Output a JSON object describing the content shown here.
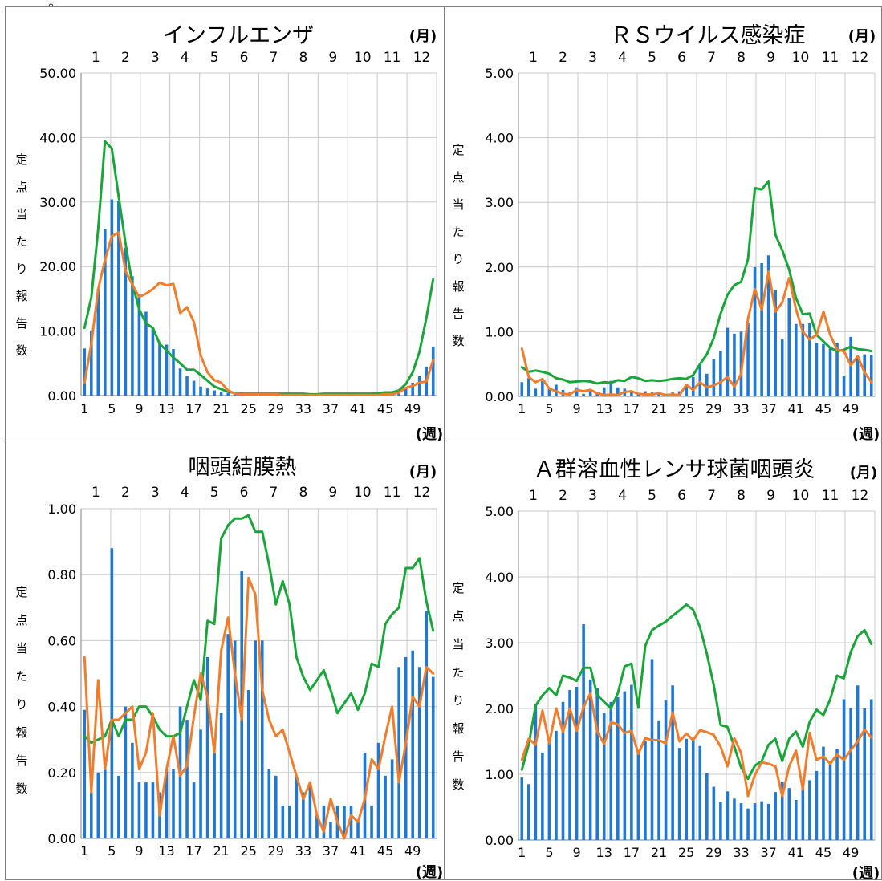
{
  "colors": {
    "bar": "#1f78d1",
    "green": "#1aa53a",
    "orange": "#f07d2c",
    "grid": "#c8c8c8",
    "axis": "#808080"
  },
  "chart_data": [
    {
      "type": "bar",
      "title": "インフルエンザ",
      "month_unit": "(月)",
      "week_unit": "(週)",
      "ylabel": "定点当たり報告数",
      "ylim": [
        0,
        50
      ],
      "yticks": [
        0,
        10,
        20,
        30,
        40,
        50
      ],
      "ytick_labels": [
        "0.00",
        "10.00",
        "20.00",
        "30.00",
        "40.00",
        "50.00"
      ],
      "months": [
        "1",
        "2",
        "3",
        "4",
        "5",
        "6",
        "7",
        "8",
        "9",
        "10",
        "11",
        "12"
      ],
      "xtick_labels": [
        "1",
        "5",
        "9",
        "13",
        "17",
        "21",
        "25",
        "29",
        "33",
        "37",
        "41",
        "45",
        "49"
      ],
      "series": [
        {
          "type": "bar",
          "values": [
            7.3,
            10.1,
            16.5,
            25.8,
            30.4,
            30.2,
            22.9,
            18.5,
            15.8,
            13.0,
            10.5,
            8.3,
            7.9,
            7.2,
            4.2,
            3.0,
            2.3,
            1.4,
            1.1,
            0.8,
            0.6,
            0.4,
            0.3,
            0.5,
            0.3,
            0.2,
            0.2,
            0.2,
            0.2,
            0.1,
            0.1,
            0.1,
            0.1,
            0.1,
            0.1,
            0.1,
            0.1,
            0.1,
            0.1,
            0.1,
            0.1,
            0.1,
            0.1,
            0.1,
            0.2,
            0.2,
            0.8,
            1.2,
            2.0,
            3.0,
            4.5,
            7.6
          ]
        },
        {
          "type": "line",
          "color": "green",
          "values": [
            10.5,
            15.2,
            25.8,
            39.4,
            38.3,
            30.8,
            23.6,
            17.3,
            13.4,
            11.2,
            10.5,
            8.0,
            7.0,
            5.9,
            5.0,
            4.0,
            4.0,
            3.2,
            2.3,
            1.4,
            1.0,
            0.6,
            0.4,
            0.3,
            0.3,
            0.3,
            0.3,
            0.3,
            0.3,
            0.3,
            0.3,
            0.3,
            0.3,
            0.2,
            0.2,
            0.3,
            0.3,
            0.3,
            0.3,
            0.3,
            0.3,
            0.3,
            0.3,
            0.4,
            0.5,
            0.5,
            0.8,
            1.8,
            3.6,
            6.8,
            12.0,
            18.0
          ]
        },
        {
          "type": "line",
          "color": "orange",
          "values": [
            2.0,
            8.0,
            16.5,
            21.0,
            24.7,
            25.3,
            19.3,
            17.2,
            15.3,
            15.8,
            16.5,
            17.5,
            17.1,
            17.3,
            12.8,
            13.7,
            11.4,
            6.2,
            3.6,
            2.4,
            2.0,
            0.8,
            0.3,
            0.2,
            0.2,
            0.2,
            0.2,
            0.2,
            0.2,
            0.1,
            0.1,
            0.1,
            0.1,
            0.1,
            0.1,
            0.1,
            0.1,
            0.1,
            0.1,
            0.1,
            0.1,
            0.1,
            0.1,
            0.1,
            0.2,
            0.2,
            0.5,
            1.2,
            1.5,
            2.0,
            2.2,
            5.5
          ]
        }
      ]
    },
    {
      "type": "bar",
      "title": "ＲＳウイルス感染症",
      "month_unit": "(月)",
      "week_unit": "(週)",
      "ylabel": "定点当たり報告数",
      "ylim": [
        0,
        5
      ],
      "yticks": [
        0,
        1,
        2,
        3,
        4,
        5
      ],
      "ytick_labels": [
        "0.00",
        "1.00",
        "2.00",
        "3.00",
        "4.00",
        "5.00"
      ],
      "months": [
        "1",
        "2",
        "3",
        "4",
        "5",
        "6",
        "7",
        "8",
        "9",
        "10",
        "11",
        "12"
      ],
      "xtick_labels": [
        "1",
        "5",
        "9",
        "13",
        "17",
        "21",
        "25",
        "29",
        "33",
        "37",
        "41",
        "45",
        "49"
      ],
      "series": [
        {
          "type": "bar",
          "values": [
            0.22,
            0.28,
            0.12,
            0.24,
            0.12,
            0.18,
            0.1,
            0.06,
            0.14,
            0.04,
            0.08,
            0.06,
            0.14,
            0.24,
            0.14,
            0.12,
            0.08,
            0.05,
            0.08,
            0.06,
            0.06,
            0.04,
            0.06,
            0.08,
            0.16,
            0.3,
            0.5,
            0.35,
            0.57,
            0.7,
            1.06,
            0.97,
            1.0,
            1.14,
            2.0,
            2.06,
            2.18,
            1.64,
            0.88,
            1.52,
            1.12,
            1.12,
            1.13,
            0.82,
            0.81,
            0.77,
            0.82,
            0.31,
            0.92,
            0.6,
            0.65,
            0.64
          ]
        },
        {
          "type": "line",
          "color": "green",
          "values": [
            0.45,
            0.38,
            0.4,
            0.38,
            0.35,
            0.28,
            0.26,
            0.22,
            0.23,
            0.24,
            0.23,
            0.2,
            0.22,
            0.21,
            0.25,
            0.24,
            0.3,
            0.28,
            0.24,
            0.25,
            0.24,
            0.25,
            0.27,
            0.28,
            0.27,
            0.33,
            0.5,
            0.65,
            0.9,
            1.28,
            1.57,
            1.72,
            1.77,
            2.12,
            3.22,
            3.2,
            3.33,
            2.5,
            2.26,
            1.96,
            1.52,
            1.27,
            1.28,
            0.95,
            0.85,
            0.75,
            0.7,
            0.72,
            0.77,
            0.73,
            0.72,
            0.7
          ]
        },
        {
          "type": "line",
          "color": "orange",
          "values": [
            0.74,
            0.3,
            0.22,
            0.27,
            0.12,
            0.08,
            0.04,
            0.03,
            0.1,
            0.08,
            0.1,
            0.05,
            0.02,
            0.03,
            0.02,
            0.07,
            0.08,
            0.04,
            0.03,
            0.03,
            0.05,
            0.02,
            0.03,
            0.02,
            0.18,
            0.1,
            0.22,
            0.14,
            0.17,
            0.22,
            0.3,
            0.15,
            0.35,
            1.2,
            1.66,
            1.34,
            1.93,
            1.31,
            1.45,
            1.83,
            1.35,
            1.0,
            0.88,
            0.95,
            1.31,
            0.95,
            0.72,
            0.7,
            0.48,
            0.62,
            0.37,
            0.22
          ]
        }
      ]
    },
    {
      "type": "bar",
      "title": "咽頭結膜熱",
      "month_unit": "(月)",
      "week_unit": "(週)",
      "ylabel": "定点当たり報告数",
      "ylim": [
        0,
        1
      ],
      "yticks": [
        0,
        0.2,
        0.4,
        0.6,
        0.8,
        1.0
      ],
      "ytick_labels": [
        "0.00",
        "0.20",
        "0.40",
        "0.60",
        "0.80",
        "1.00"
      ],
      "months": [
        "1",
        "2",
        "3",
        "4",
        "5",
        "6",
        "7",
        "8",
        "9",
        "10",
        "11",
        "12"
      ],
      "xtick_labels": [
        "1",
        "5",
        "9",
        "13",
        "17",
        "21",
        "25",
        "29",
        "33",
        "37",
        "41",
        "45",
        "49"
      ],
      "series": [
        {
          "type": "bar",
          "values": [
            0.39,
            0.14,
            0.2,
            0.21,
            0.88,
            0.19,
            0.4,
            0.29,
            0.17,
            0.17,
            0.17,
            0.14,
            0.21,
            0.21,
            0.4,
            0.36,
            0.17,
            0.33,
            0.55,
            0.26,
            0.38,
            0.62,
            0.6,
            0.81,
            0.45,
            0.6,
            0.6,
            0.21,
            0.19,
            0.1,
            0.1,
            0.19,
            0.14,
            0.17,
            0.07,
            0.1,
            0.05,
            0.1,
            0.1,
            0.1,
            0.05,
            0.26,
            0.1,
            0.29,
            0.19,
            0.24,
            0.52,
            0.55,
            0.57,
            0.52,
            0.69,
            0.49
          ]
        },
        {
          "type": "line",
          "color": "green",
          "values": [
            0.31,
            0.29,
            0.3,
            0.31,
            0.36,
            0.31,
            0.36,
            0.36,
            0.4,
            0.4,
            0.37,
            0.33,
            0.31,
            0.31,
            0.32,
            0.4,
            0.48,
            0.42,
            0.66,
            0.65,
            0.91,
            0.95,
            0.97,
            0.97,
            0.98,
            0.93,
            0.93,
            0.83,
            0.71,
            0.78,
            0.71,
            0.55,
            0.49,
            0.45,
            0.48,
            0.51,
            0.45,
            0.38,
            0.41,
            0.44,
            0.39,
            0.44,
            0.53,
            0.52,
            0.65,
            0.68,
            0.7,
            0.82,
            0.82,
            0.85,
            0.72,
            0.63
          ]
        },
        {
          "type": "line",
          "color": "orange",
          "values": [
            0.55,
            0.14,
            0.48,
            0.21,
            0.36,
            0.36,
            0.38,
            0.4,
            0.21,
            0.26,
            0.38,
            0.07,
            0.21,
            0.31,
            0.19,
            0.22,
            0.37,
            0.5,
            0.43,
            0.26,
            0.57,
            0.67,
            0.5,
            0.36,
            0.79,
            0.74,
            0.45,
            0.36,
            0.31,
            0.33,
            0.26,
            0.19,
            0.12,
            0.17,
            0.07,
            0.02,
            0.12,
            0.05,
            0.0,
            0.07,
            0.05,
            0.12,
            0.24,
            0.21,
            0.31,
            0.4,
            0.17,
            0.29,
            0.43,
            0.4,
            0.52,
            0.5
          ]
        }
      ]
    },
    {
      "type": "bar",
      "title": "Ａ群溶血性レンサ球菌咽頭炎",
      "month_unit": "(月)",
      "week_unit": "(週)",
      "ylabel": "定点当たり報告数",
      "ylim": [
        0,
        5
      ],
      "yticks": [
        0,
        1,
        2,
        3,
        4,
        5
      ],
      "ytick_labels": [
        "0.00",
        "1.00",
        "2.00",
        "3.00",
        "4.00",
        "5.00"
      ],
      "months": [
        "1",
        "2",
        "3",
        "4",
        "5",
        "6",
        "7",
        "8",
        "9",
        "10",
        "11",
        "12"
      ],
      "xtick_labels": [
        "1",
        "5",
        "9",
        "13",
        "17",
        "21",
        "25",
        "29",
        "33",
        "37",
        "41",
        "45",
        "49"
      ],
      "series": [
        {
          "type": "bar",
          "values": [
            0.95,
            0.85,
            2.07,
            1.33,
            1.53,
            1.66,
            2.1,
            2.28,
            2.33,
            3.28,
            2.44,
            2.31,
            1.93,
            2.1,
            2.17,
            2.26,
            2.36,
            1.34,
            1.51,
            2.75,
            1.82,
            2.12,
            2.35,
            1.4,
            1.54,
            1.52,
            1.43,
            1.02,
            0.81,
            0.58,
            0.74,
            0.63,
            0.56,
            0.48,
            0.56,
            0.59,
            0.55,
            0.73,
            0.89,
            0.79,
            0.61,
            0.79,
            0.91,
            1.05,
            1.42,
            1.2,
            1.38,
            2.14,
            2.0,
            2.35,
            2.0,
            2.14
          ]
        },
        {
          "type": "line",
          "color": "green",
          "values": [
            1.07,
            1.45,
            2.04,
            2.2,
            2.31,
            2.2,
            2.5,
            2.47,
            2.42,
            2.62,
            2.62,
            2.2,
            2.1,
            2.0,
            2.23,
            2.64,
            2.68,
            2.01,
            2.95,
            3.19,
            3.26,
            3.32,
            3.41,
            3.49,
            3.58,
            3.5,
            3.23,
            2.83,
            2.36,
            1.75,
            1.72,
            1.42,
            1.1,
            0.93,
            1.13,
            1.2,
            1.45,
            1.54,
            1.2,
            1.54,
            1.65,
            1.42,
            1.8,
            1.98,
            1.9,
            2.14,
            2.5,
            2.46,
            2.86,
            3.1,
            3.19,
            2.98
          ]
        },
        {
          "type": "line",
          "color": "orange",
          "values": [
            1.22,
            1.54,
            1.45,
            1.97,
            1.47,
            2.0,
            1.64,
            2.0,
            1.66,
            2.02,
            2.23,
            1.65,
            1.46,
            1.79,
            1.76,
            1.63,
            1.66,
            1.31,
            1.55,
            1.52,
            1.52,
            1.47,
            1.94,
            1.5,
            1.62,
            1.52,
            1.67,
            1.64,
            1.6,
            1.42,
            1.12,
            1.55,
            1.32,
            0.67,
            0.99,
            1.18,
            1.16,
            1.12,
            0.67,
            1.12,
            1.36,
            0.77,
            1.63,
            1.22,
            1.27,
            1.16,
            1.3,
            1.22,
            1.37,
            1.5,
            1.68,
            1.56
          ]
        }
      ]
    }
  ]
}
